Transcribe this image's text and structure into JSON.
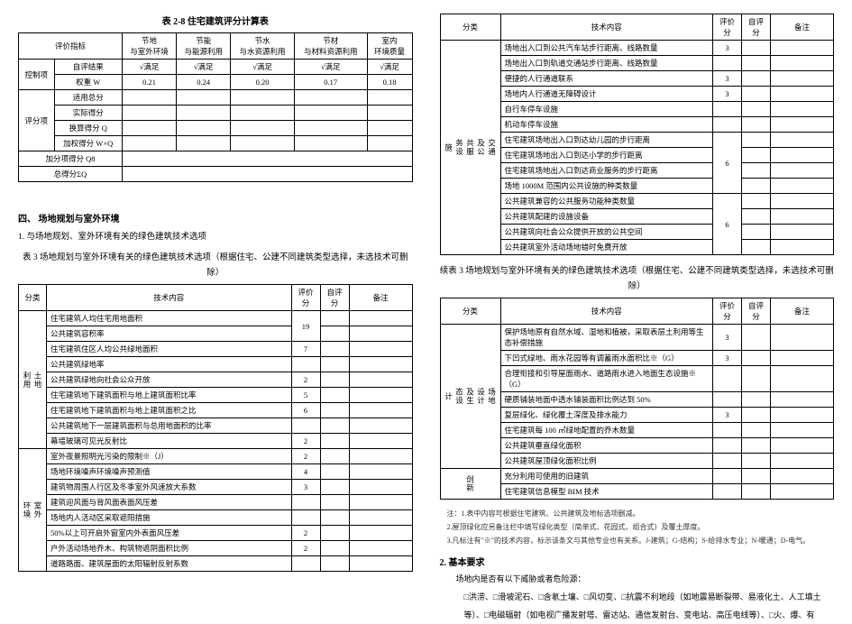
{
  "leftCol": {
    "table28": {
      "title": "表 2-8 住宅建筑评分计算表",
      "headerRow1": [
        "评价指标",
        "节地\n与室外环境",
        "节能\n与能源利用",
        "节水\n与水资源利用",
        "节材\n与材料资源利用",
        "室内\n环境质量"
      ],
      "controlRow": {
        "label1": "控制项",
        "label2": "自评结果",
        "vals": [
          "√满足",
          "√满足",
          "√满足",
          "√满足",
          "√满足"
        ]
      },
      "weightRow": {
        "label": "权重 W",
        "vals": [
          "0.21",
          "0.24",
          "0.20",
          "0.17",
          "0.18"
        ]
      },
      "scoreRows": [
        {
          "cat": "评分项",
          "label": "适用总分"
        },
        {
          "label": "实际得分"
        },
        {
          "label": "换算得分 Q"
        },
        {
          "label": "加权得分 W×Q"
        }
      ],
      "bottomRows": [
        {
          "label": "加分项得分 Q8"
        },
        {
          "label": "总得分ΣQ"
        }
      ]
    },
    "section4": {
      "heading": "四、  场地规划与室外环境",
      "line1": "1.    与场地规划、室外环境有关的绿色建筑技术选项",
      "table3Title": "表 3  场地规划与室外环境有关的绿色建筑技术选项（根据住宅、公建不同建筑类型选择，未选技术可删除）",
      "header": [
        "分类",
        "技术内容",
        "评价分",
        "自评分",
        "备注"
      ],
      "groups": [
        {
          "cat": "土地\n利用",
          "rows": [
            {
              "t": "住宅建筑人均住宅用地面积",
              "s": "19",
              "merge": 2
            },
            {
              "t": "公共建筑容积率"
            },
            {
              "t": "住宅建筑住区人均公共绿地面积",
              "s": "7"
            },
            {
              "t": "公共建筑绿地率",
              "s": ""
            },
            {
              "t": "公共建筑绿地向社会公众开放",
              "s": "2"
            },
            {
              "t": "住宅建筑地下建筑面积与地上建筑面积比率",
              "s": "5"
            },
            {
              "t": "住宅建筑地下建筑面积与地上建筑面积之比",
              "s": "6"
            },
            {
              "t": "公共建筑地下一层建筑面积与总用地面积的比率",
              "s": ""
            },
            {
              "t": "幕墙玻璃可见光反射比",
              "s": "2"
            }
          ]
        },
        {
          "cat": "室外\n环境",
          "rows": [
            {
              "t": "室外夜景照明光污染的限制※（J）",
              "s": "2"
            },
            {
              "t": "场地环境噪声环境噪声预测值",
              "s": "4"
            },
            {
              "t": "建筑物周围人行区及冬季室外风速放大系数",
              "s": "3"
            },
            {
              "t": "建筑迎风面与背风面表面风压差",
              "s": ""
            },
            {
              "t": "场地内人活动区采取遮阳措施",
              "s": ""
            },
            {
              "t": "50%以上可开启外窗室内外表面风压差",
              "s": "2"
            },
            {
              "t": "户外活动场地乔木、构筑物遮阴面积比例",
              "s": "2"
            },
            {
              "t": "道路路面、建筑屋面的太阳辐射反射系数",
              "s": ""
            }
          ]
        }
      ]
    }
  },
  "rightCol": {
    "tableTop": {
      "header": [
        "分类",
        "技术内容",
        "评价分",
        "自评分",
        "备注"
      ],
      "cat": "交通\n及公\n共服\n务设\n施",
      "rows": [
        {
          "t": "场地出入口到公共汽车站步行距离、线路数量",
          "s": "3"
        },
        {
          "t": "场地出入口到轨道交通站步行距离、线路数量",
          "s": ""
        },
        {
          "t": "便捷的人行通道联系",
          "s": "3"
        },
        {
          "t": "场地内人行通道无障碍设计",
          "s": "3"
        },
        {
          "t": "自行车停车设施",
          "s": ""
        },
        {
          "t": "机动车停车设施",
          "s": ""
        },
        {
          "t": "住宅建筑场地出入口到达幼儿园的步行距离",
          "s": "6",
          "merge": 4
        },
        {
          "t": "住宅建筑场地出入口到达小学的步行距离"
        },
        {
          "t": "住宅建筑场地出入口到达商业服务的步行距离"
        },
        {
          "t": "场地 1000M 范围内公共设施的种类数量"
        },
        {
          "t": "公共建筑兼容的公共服务功能种类数量",
          "s": "6",
          "merge": 4
        },
        {
          "t": "公共建筑配建的设施设备"
        },
        {
          "t": "公共建筑向社会公众提供开放的公共空间"
        },
        {
          "t": "公共建筑室外活动场地错时免费开放"
        }
      ]
    },
    "contTitle": "续表 3  场地规划与室外环境有关的绿色建筑技术选项（根据住宅、公建不同建筑类型选择，未选技术可删除）",
    "tableCont": {
      "header": [
        "分类",
        "技术内容",
        "评价分",
        "自评分",
        "备注"
      ],
      "groups": [
        {
          "cat": "场地\n设计\n及生\n态设\n计",
          "rows": [
            {
              "t": "保护场地原有自然水域、湿地和植被，采取表层土利用等生态补偿措施",
              "s": "3"
            },
            {
              "t": "下凹式绿地、雨水花园等有调蓄雨水面积比※（G）",
              "s": "3"
            },
            {
              "t": "合理衔接和引导屋面雨水、道路雨水进入地面生态设施※（G）",
              "s": ""
            },
            {
              "t": "硬质铺装地面中透水铺装面积比例达到 50%",
              "s": ""
            },
            {
              "t": "复层绿化、绿化覆土深度及排水能力",
              "s": "3"
            },
            {
              "t": "住宅建筑每 100 ㎡绿地配置的乔木数量",
              "s": ""
            },
            {
              "t": "公共建筑垂直绿化面积",
              "s": ""
            },
            {
              "t": "公共建筑屋顶绿化面积比例",
              "s": ""
            }
          ]
        },
        {
          "cat": "创新",
          "rows": [
            {
              "t": "充分利用可使用的旧建筑",
              "s": ""
            },
            {
              "t": "住宅建筑信息模型 BIM 技术",
              "s": ""
            }
          ]
        }
      ]
    },
    "notes": [
      "注：1.表中内容可根据住宅建筑、公共建筑及地标选项删减。",
      "2.屋顶绿化应另备注栏中填写绿化类型（简单式、花园式、组合式）及覆土厚度。",
      "3.凡标注有\"※\"的技术内容，标示该条文与其他专业也有关系。J-建筑；G-结构；S-给排水专业；N-暖通；D-电气。"
    ],
    "section2": {
      "heading": "2.    基本要求",
      "p1": "场地内是否有以下威胁或者危险源：",
      "p2": "□洪涝、□滑坡泥石、□含氡土壤、□风切变、□抗震不利地段（如地震易断裂带、易液化土、人工填土等）、□电磁辐射（如电视广播发射塔、雷达站、通信发射台、变电站、高压电线等）、□火、爆、有"
    }
  }
}
